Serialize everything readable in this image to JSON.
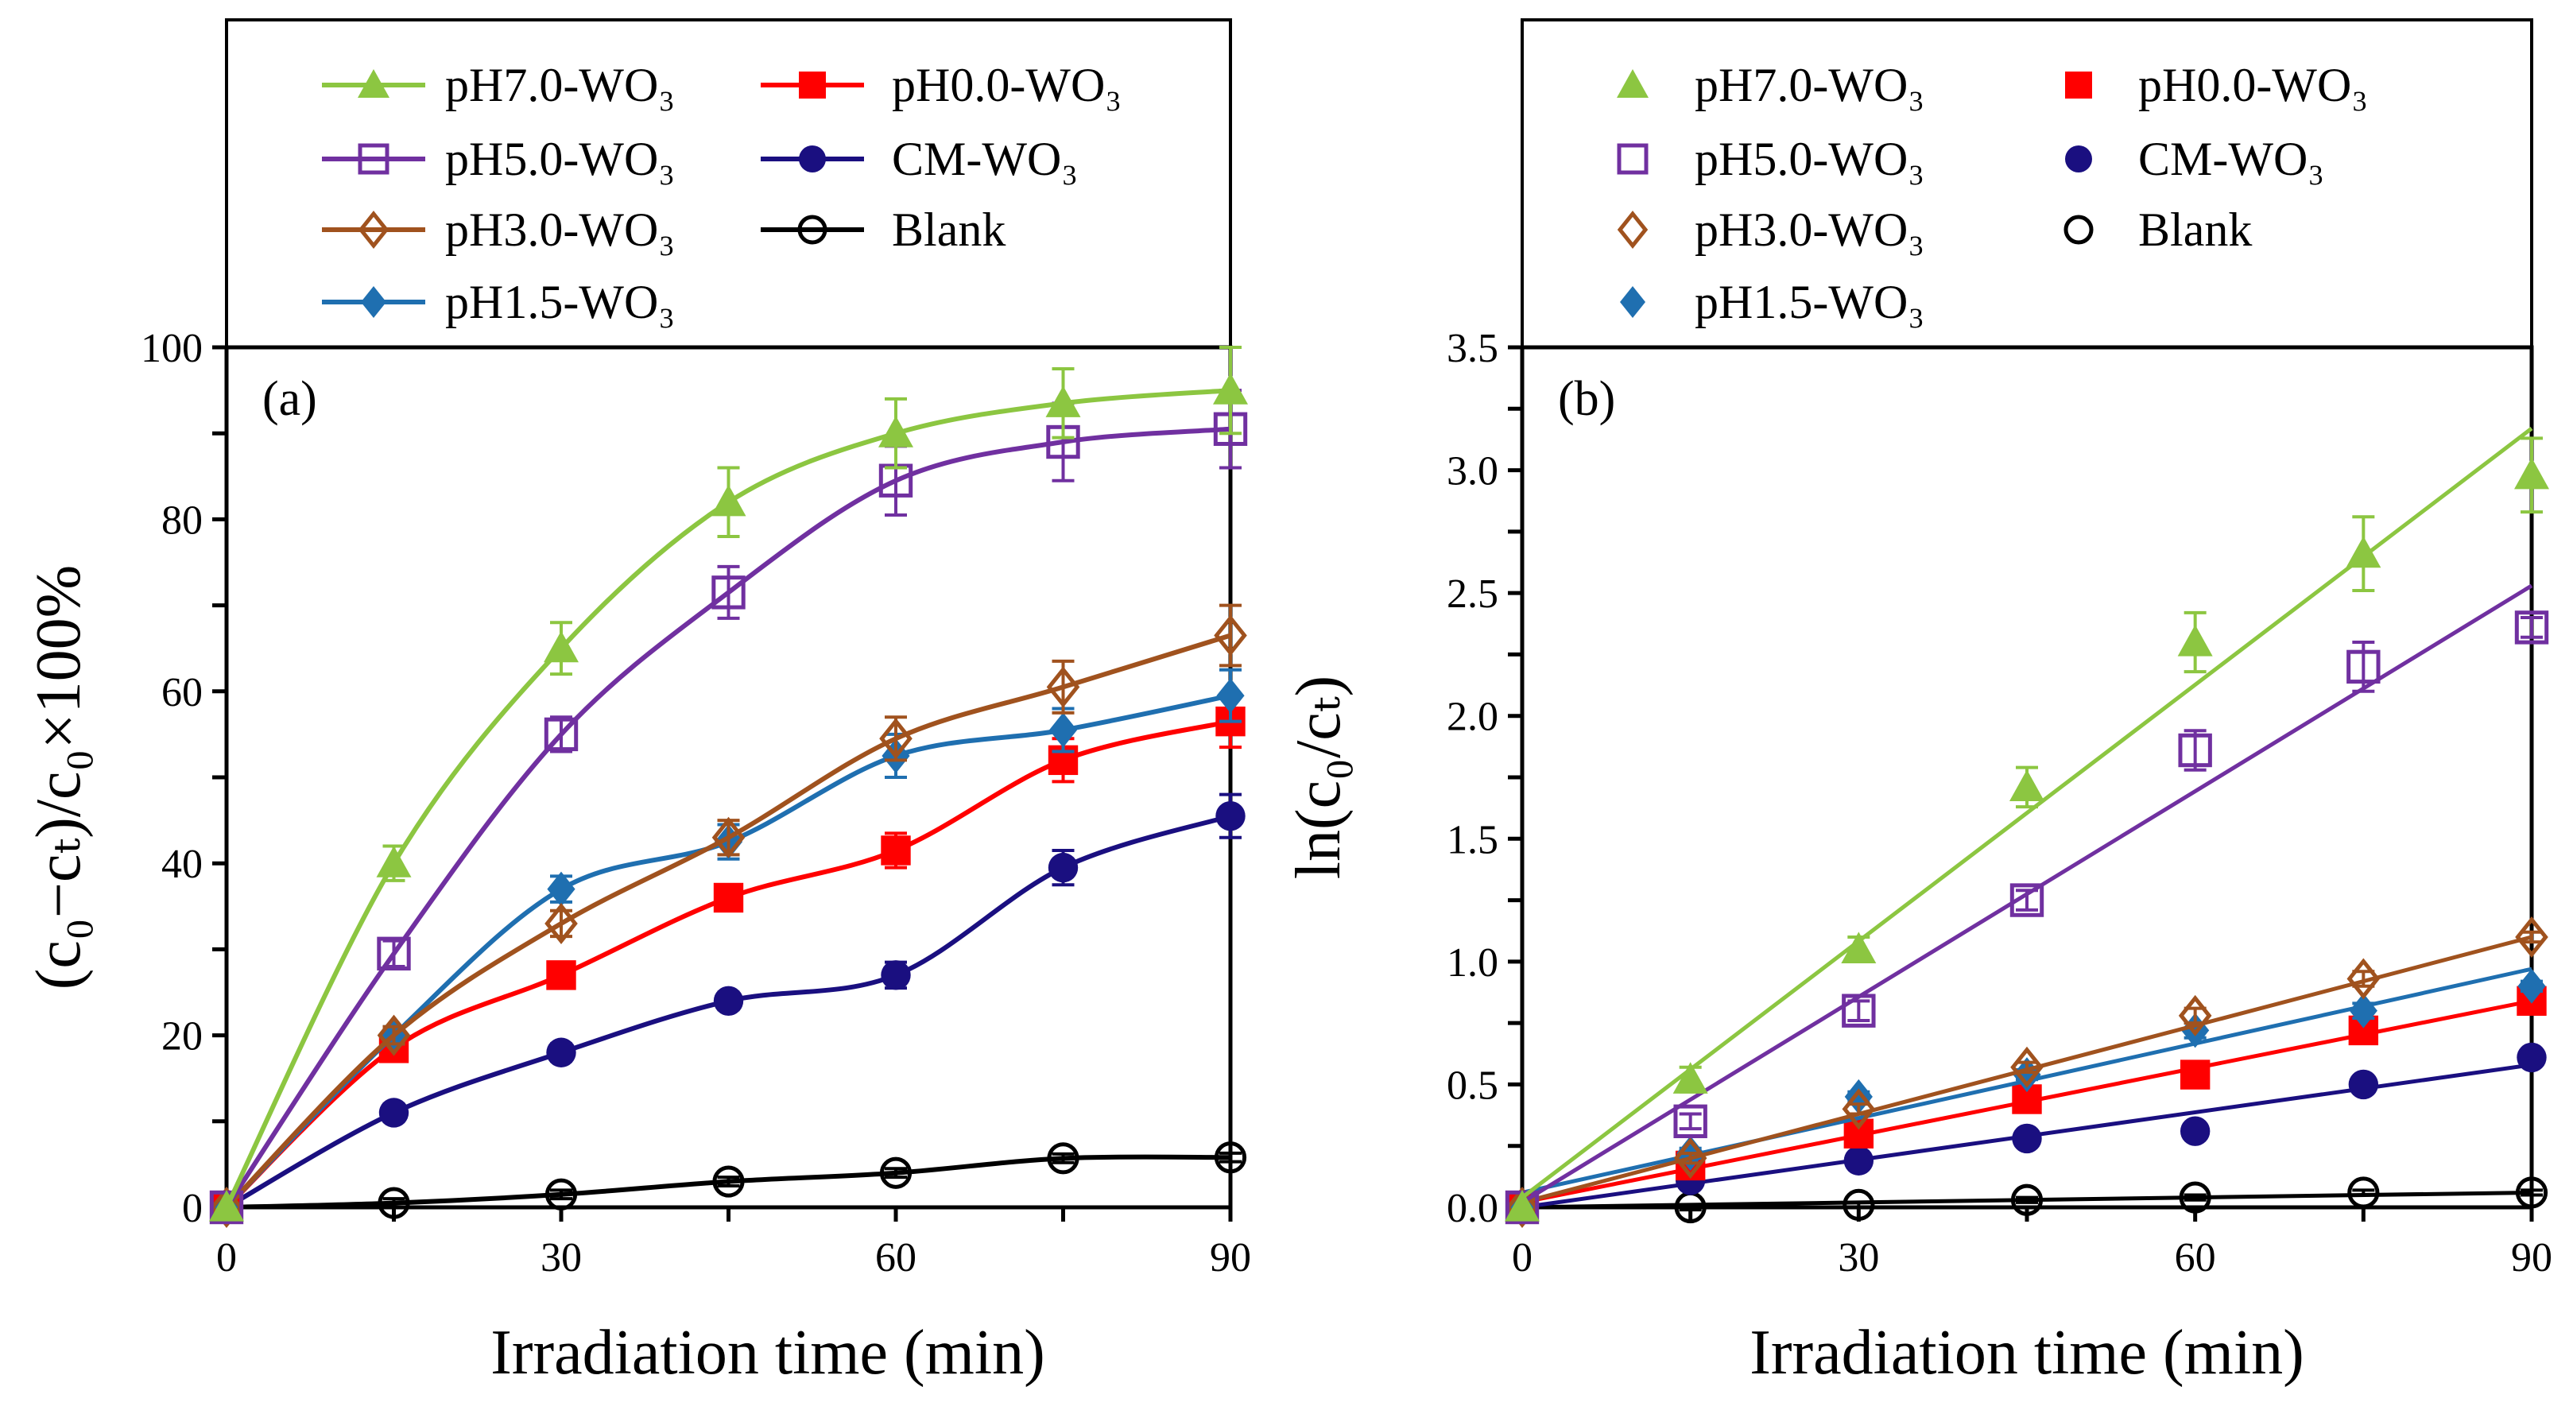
{
  "chart_data": [
    {
      "type": "line",
      "panel_label": "(a)",
      "xlabel": "Irradiation time (min)",
      "ylabel": "(c₀−cₜ)/c₀×100%",
      "xlim": [
        0,
        90
      ],
      "ylim": [
        0,
        100
      ],
      "xticks": [
        0,
        30,
        60,
        90
      ],
      "yticks": [
        0,
        20,
        40,
        60,
        80,
        100
      ],
      "x": [
        0,
        15,
        30,
        45,
        60,
        75,
        90
      ],
      "legend_position": "top (box above plot)",
      "series": [
        {
          "name": "pH7.0-WO₃",
          "color": "#8cc641",
          "marker": "filled-triangle",
          "values": [
            0,
            40,
            65,
            82,
            90,
            93.5,
            95
          ],
          "error": [
            0,
            2,
            3,
            4,
            4,
            4,
            5
          ]
        },
        {
          "name": "pH5.0-WO₃",
          "color": "#7030a0",
          "marker": "open-square",
          "values": [
            0,
            29.5,
            55,
            71.5,
            84.5,
            89,
            90.5
          ],
          "error": [
            0,
            1.5,
            2,
            3,
            4,
            4.5,
            4.5
          ]
        },
        {
          "name": "pH3.0-WO₃",
          "color": "#a0521e",
          "marker": "open-diamond",
          "values": [
            0,
            20,
            33,
            43,
            54.5,
            60.5,
            66.5
          ],
          "error": [
            0,
            1,
            1.5,
            2,
            2.5,
            3,
            3.5
          ]
        },
        {
          "name": "pH1.5-WO₃",
          "color": "#1f6fb0",
          "marker": "filled-diamond",
          "values": [
            0,
            20,
            37,
            42.5,
            52.5,
            55.5,
            59.5
          ],
          "error": [
            0,
            1,
            1.5,
            2,
            2.5,
            2.5,
            3
          ]
        },
        {
          "name": "pH0.0-WO₃",
          "color": "#ff0000",
          "marker": "filled-square",
          "values": [
            0,
            18.5,
            27,
            36,
            41.5,
            52,
            56.5
          ],
          "error": [
            0,
            1,
            1,
            1,
            2,
            2.5,
            3
          ]
        },
        {
          "name": "CM-WO₃",
          "color": "#1a0f80",
          "marker": "filled-circle",
          "values": [
            0,
            11,
            18,
            24,
            27,
            39.5,
            45.5
          ],
          "error": [
            0,
            1,
            1,
            1,
            1.5,
            2,
            2.5
          ]
        },
        {
          "name": "Blank",
          "color": "#000000",
          "marker": "open-circle",
          "values": [
            0,
            0.5,
            1.5,
            3,
            4,
            5.7,
            5.8
          ],
          "error": [
            0,
            0.5,
            0.5,
            0.5,
            0.5,
            0.5,
            0.5
          ]
        }
      ]
    },
    {
      "type": "scatter",
      "panel_label": "(b)",
      "xlabel": "Irradiation time (min)",
      "ylabel": "ln(c₀/cₜ)",
      "xlim": [
        0,
        90
      ],
      "ylim": [
        0,
        3.5
      ],
      "xticks": [
        0,
        30,
        60,
        90
      ],
      "yticks": [
        "0.0",
        "0.5",
        "1.0",
        "1.5",
        "2.0",
        "2.5",
        "3.0",
        "3.5"
      ],
      "x": [
        0,
        15,
        30,
        45,
        60,
        75,
        90
      ],
      "legend_position": "top (box above plot)",
      "series": [
        {
          "name": "pH7.0-WO₃",
          "color": "#8cc641",
          "marker": "filled-triangle",
          "values": [
            0,
            0.52,
            1.05,
            1.71,
            2.3,
            2.66,
            2.98
          ],
          "error": [
            0,
            0.05,
            0.05,
            0.08,
            0.12,
            0.15,
            0.15
          ],
          "fit": [
            0.04,
            3.17
          ]
        },
        {
          "name": "pH5.0-WO₃",
          "color": "#7030a0",
          "marker": "open-square",
          "values": [
            0,
            0.35,
            0.8,
            1.25,
            1.86,
            2.2,
            2.36
          ],
          "error": [
            0,
            0.03,
            0.04,
            0.04,
            0.08,
            0.1,
            0.04
          ],
          "fit": [
            0.02,
            2.53
          ]
        },
        {
          "name": "pH3.0-WO₃",
          "color": "#a0521e",
          "marker": "open-diamond",
          "values": [
            0,
            0.2,
            0.4,
            0.57,
            0.78,
            0.93,
            1.1
          ],
          "error": [
            0,
            0.02,
            0.02,
            0.02,
            0.03,
            0.03,
            0.02
          ],
          "fit": [
            0.02,
            1.1
          ]
        },
        {
          "name": "pH1.5-WO₃",
          "color": "#1f6fb0",
          "marker": "filled-diamond",
          "values": [
            0,
            0.22,
            0.45,
            0.54,
            0.72,
            0.8,
            0.9
          ],
          "error": [
            0,
            0.02,
            0.02,
            0.02,
            0.03,
            0.03,
            0.02
          ],
          "fit": [
            0.06,
            0.97
          ]
        },
        {
          "name": "pH0.0-WO₃",
          "color": "#ff0000",
          "marker": "filled-square",
          "values": [
            0,
            0.17,
            0.3,
            0.44,
            0.54,
            0.72,
            0.84
          ],
          "error": [
            0,
            0.02,
            0.02,
            0.02,
            0.02,
            0.03,
            0.02
          ],
          "fit": [
            0.02,
            0.84
          ]
        },
        {
          "name": "CM-WO₃",
          "color": "#1a0f80",
          "marker": "filled-circle",
          "values": [
            0,
            0.11,
            0.19,
            0.28,
            0.31,
            0.5,
            0.61
          ],
          "error": [
            0,
            0.01,
            0.01,
            0.01,
            0.02,
            0.02,
            0.02
          ],
          "fit": [
            0.0,
            0.58
          ]
        },
        {
          "name": "Blank",
          "color": "#000000",
          "marker": "open-circle",
          "values": [
            0,
            0,
            0.01,
            0.03,
            0.04,
            0.06,
            0.06
          ],
          "error": [
            0,
            0.01,
            0.01,
            0.01,
            0.01,
            0.01,
            0.01
          ],
          "fit": [
            0.0,
            0.06
          ]
        }
      ]
    }
  ]
}
